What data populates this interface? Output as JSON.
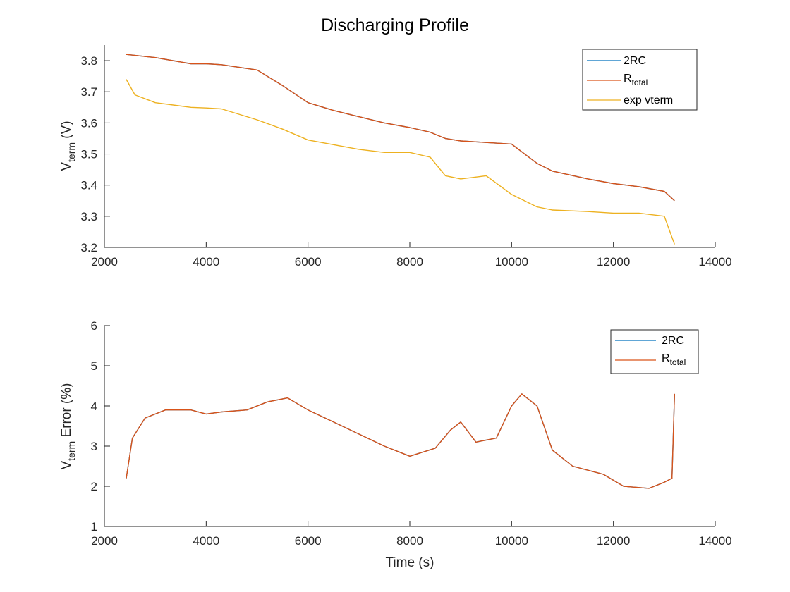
{
  "chart_data": [
    {
      "type": "line",
      "title": "Discharging Profile",
      "xlabel": "",
      "ylabel_base": "V",
      "ylabel_sub": "term",
      "ylabel_rest": " (V)",
      "xlim": [
        2000,
        14000
      ],
      "ylim": [
        3.2,
        3.85
      ],
      "xticks": [
        "2000",
        "4000",
        "6000",
        "8000",
        "10000",
        "12000",
        "14000"
      ],
      "yticks": [
        "3.2",
        "3.3",
        "3.4",
        "3.5",
        "3.6",
        "3.7",
        "3.8"
      ],
      "legend_position": "top-right",
      "series": [
        {
          "name": "2RC",
          "name_sub": "",
          "color": "#0072BD",
          "x": [
            2430,
            3000,
            3700,
            4000,
            4300,
            5000,
            5500,
            6000,
            6500,
            7000,
            7500,
            8000,
            8400,
            8700,
            9000,
            9500,
            10000,
            10500,
            10800,
            11500,
            12000,
            12500,
            13000,
            13200
          ],
          "y": [
            3.82,
            3.81,
            3.79,
            3.79,
            3.787,
            3.77,
            3.72,
            3.665,
            3.64,
            3.62,
            3.6,
            3.585,
            3.57,
            3.55,
            3.542,
            3.537,
            3.532,
            3.47,
            3.445,
            3.42,
            3.405,
            3.395,
            3.38,
            3.35
          ]
        },
        {
          "name": "R",
          "name_sub": "total",
          "color": "#D95319",
          "x": [
            2430,
            3000,
            3700,
            4000,
            4300,
            5000,
            5500,
            6000,
            6500,
            7000,
            7500,
            8000,
            8400,
            8700,
            9000,
            9500,
            10000,
            10500,
            10800,
            11500,
            12000,
            12500,
            13000,
            13200
          ],
          "y": [
            3.82,
            3.81,
            3.79,
            3.79,
            3.787,
            3.77,
            3.72,
            3.665,
            3.64,
            3.62,
            3.6,
            3.585,
            3.57,
            3.55,
            3.542,
            3.537,
            3.532,
            3.47,
            3.445,
            3.42,
            3.405,
            3.395,
            3.38,
            3.35
          ]
        },
        {
          "name": "exp vterm",
          "name_sub": "",
          "color": "#EDB120",
          "x": [
            2430,
            2600,
            3000,
            3700,
            4000,
            4300,
            5000,
            5500,
            6000,
            6500,
            7000,
            7500,
            8000,
            8400,
            8700,
            9000,
            9500,
            10000,
            10500,
            10800,
            11500,
            12000,
            12500,
            13000,
            13200
          ],
          "y": [
            3.74,
            3.69,
            3.665,
            3.65,
            3.648,
            3.645,
            3.61,
            3.58,
            3.545,
            3.53,
            3.515,
            3.505,
            3.505,
            3.49,
            3.43,
            3.42,
            3.43,
            3.37,
            3.33,
            3.32,
            3.315,
            3.31,
            3.31,
            3.3,
            3.21
          ]
        }
      ]
    },
    {
      "type": "line",
      "title": "",
      "xlabel": "Time (s)",
      "ylabel_base": "V",
      "ylabel_sub": "term",
      "ylabel_rest": " Error (%)",
      "xlim": [
        2000,
        14000
      ],
      "ylim": [
        1,
        6
      ],
      "xticks": [
        "2000",
        "4000",
        "6000",
        "8000",
        "10000",
        "12000",
        "14000"
      ],
      "yticks": [
        "1",
        "2",
        "3",
        "4",
        "5",
        "6"
      ],
      "legend_position": "top-right",
      "series": [
        {
          "name": "2RC",
          "name_sub": "",
          "color": "#0072BD",
          "x": [
            2430,
            2550,
            2800,
            3200,
            3700,
            4000,
            4300,
            4800,
            5200,
            5600,
            6000,
            6500,
            7000,
            7500,
            8000,
            8500,
            8800,
            9000,
            9300,
            9700,
            10000,
            10200,
            10500,
            10800,
            11200,
            11800,
            12200,
            12700,
            13000,
            13150,
            13200
          ],
          "y": [
            2.2,
            3.2,
            3.7,
            3.9,
            3.9,
            3.8,
            3.85,
            3.9,
            4.1,
            4.2,
            3.9,
            3.6,
            3.3,
            3.0,
            2.75,
            2.95,
            3.4,
            3.6,
            3.1,
            3.2,
            4.0,
            4.3,
            4.0,
            2.9,
            2.5,
            2.3,
            2.0,
            1.95,
            2.1,
            2.2,
            4.3
          ]
        },
        {
          "name": "R",
          "name_sub": "total",
          "color": "#D95319",
          "x": [
            2430,
            2550,
            2800,
            3200,
            3700,
            4000,
            4300,
            4800,
            5200,
            5600,
            6000,
            6500,
            7000,
            7500,
            8000,
            8500,
            8800,
            9000,
            9300,
            9700,
            10000,
            10200,
            10500,
            10800,
            11200,
            11800,
            12200,
            12700,
            13000,
            13150,
            13200
          ],
          "y": [
            2.2,
            3.2,
            3.7,
            3.9,
            3.9,
            3.8,
            3.85,
            3.9,
            4.1,
            4.2,
            3.9,
            3.6,
            3.3,
            3.0,
            2.75,
            2.95,
            3.4,
            3.6,
            3.1,
            3.2,
            4.0,
            4.3,
            4.0,
            2.9,
            2.5,
            2.3,
            2.0,
            1.95,
            2.1,
            2.2,
            4.3
          ]
        }
      ]
    }
  ]
}
